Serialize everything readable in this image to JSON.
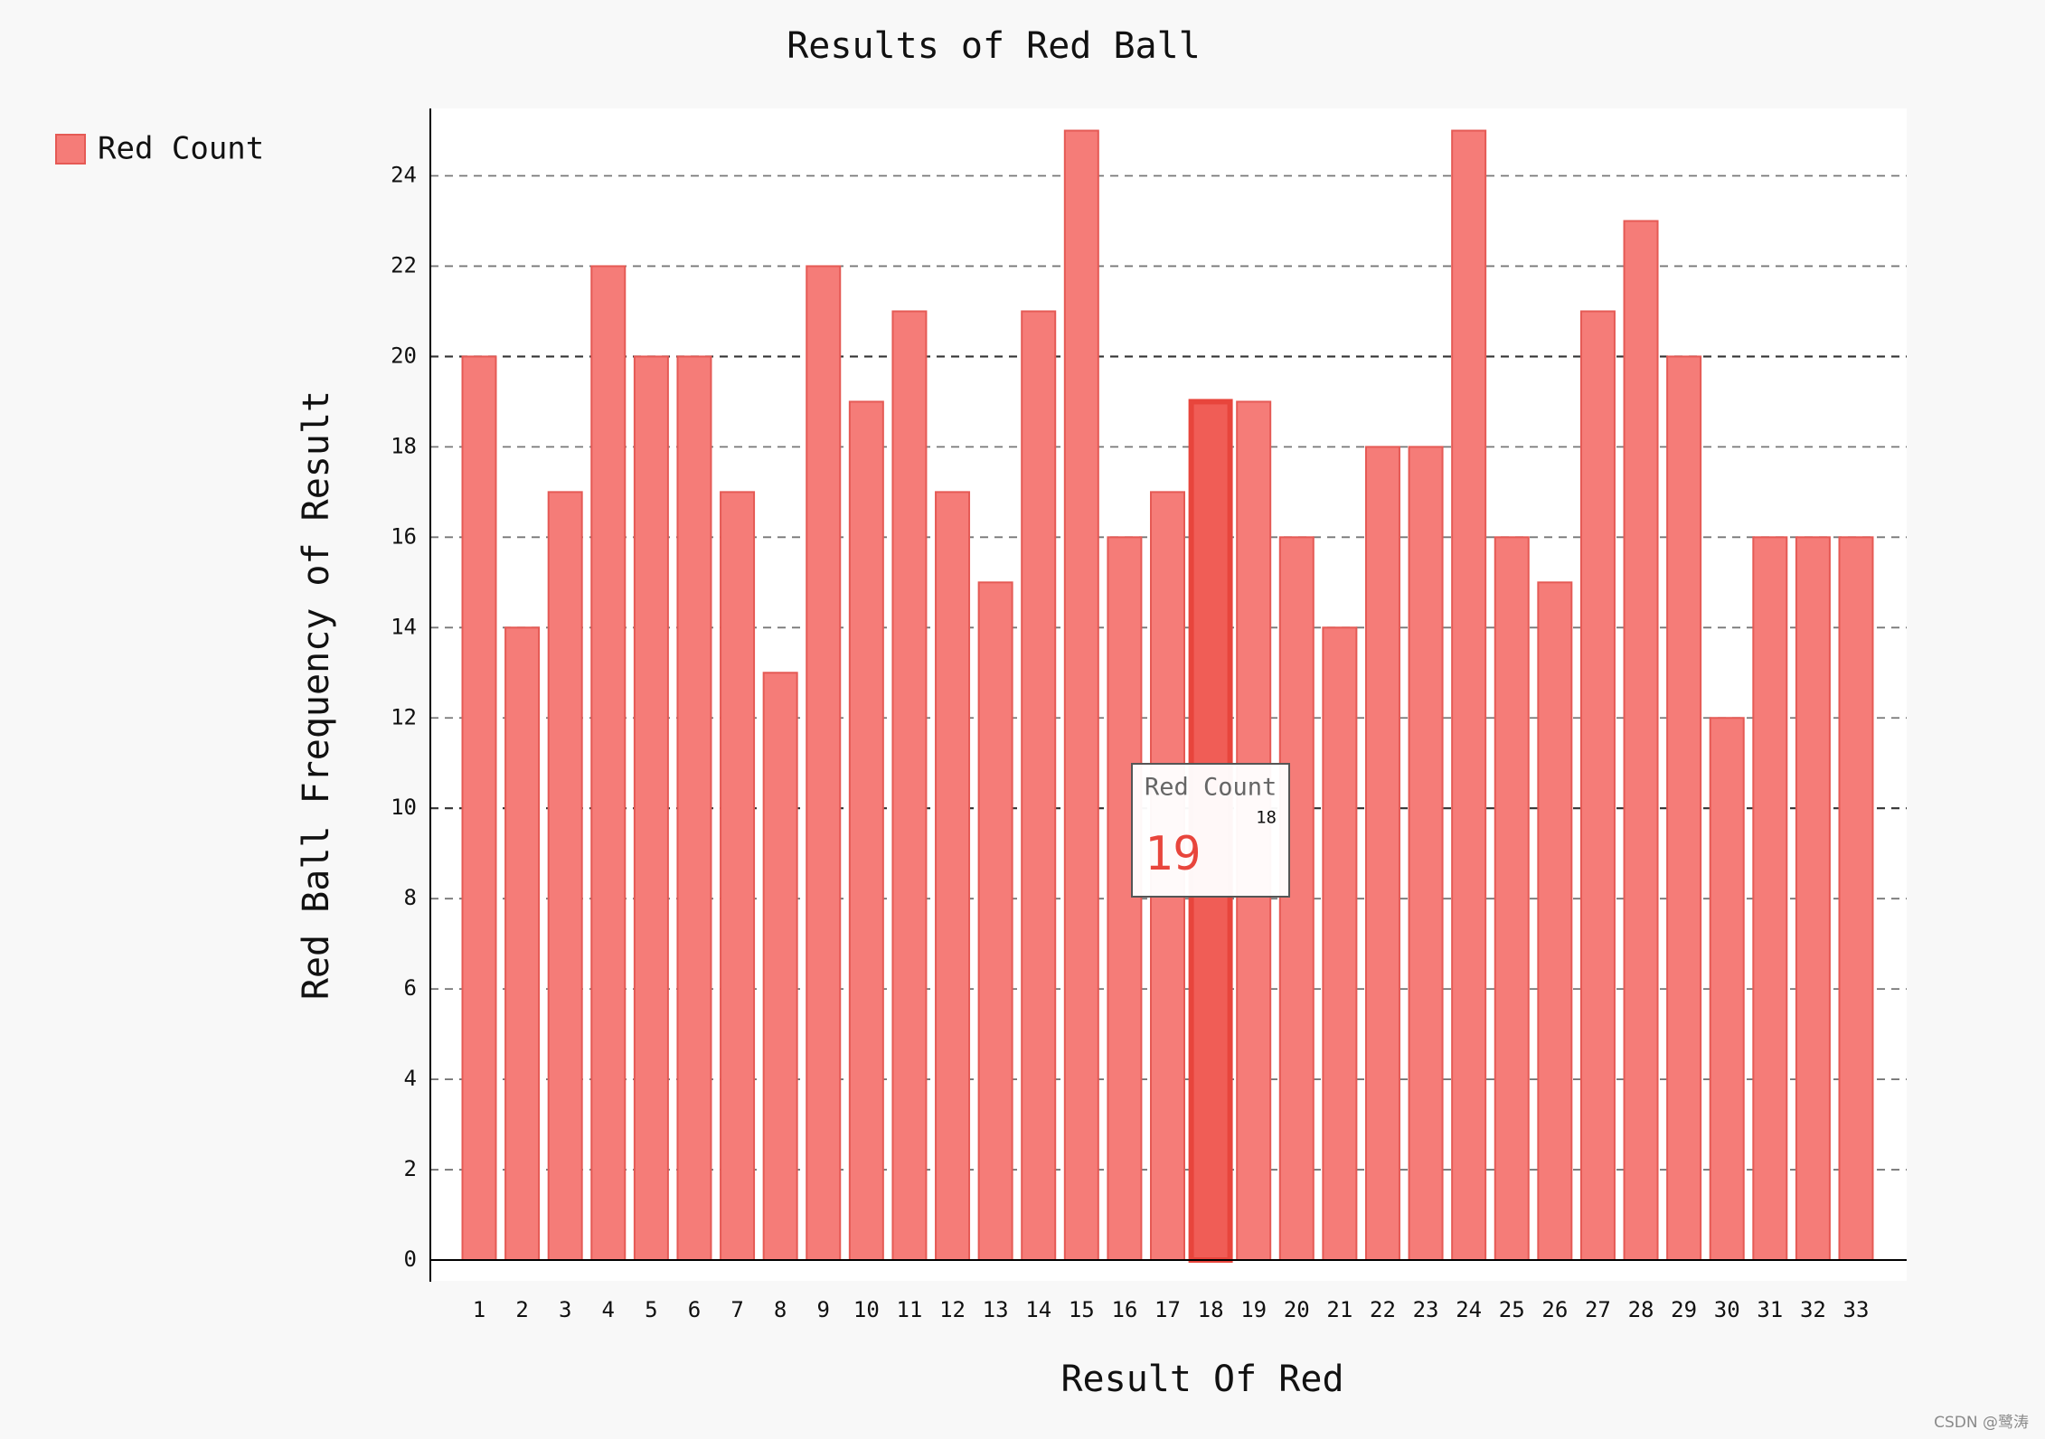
{
  "chart_data": {
    "type": "bar",
    "title": "Results of Red Ball",
    "xlabel": "Result Of Red",
    "ylabel": "Red Ball Frequency of Result",
    "ylim": [
      0,
      25
    ],
    "yticks": [
      0,
      2,
      4,
      6,
      8,
      10,
      12,
      14,
      16,
      18,
      20,
      22,
      24
    ],
    "categories": [
      "1",
      "2",
      "3",
      "4",
      "5",
      "6",
      "7",
      "8",
      "9",
      "10",
      "11",
      "12",
      "13",
      "14",
      "15",
      "16",
      "17",
      "18",
      "19",
      "20",
      "21",
      "22",
      "23",
      "24",
      "25",
      "26",
      "27",
      "28",
      "29",
      "30",
      "31",
      "32",
      "33"
    ],
    "series": [
      {
        "name": "Red Count",
        "color": "#f57c78",
        "values": [
          20,
          14,
          17,
          22,
          20,
          20,
          17,
          13,
          22,
          19,
          21,
          17,
          15,
          21,
          25,
          16,
          17,
          19,
          19,
          16,
          14,
          18,
          18,
          25,
          16,
          15,
          21,
          23,
          20,
          12,
          16,
          16,
          16
        ]
      }
    ],
    "legend": {
      "position": "top-left",
      "label": "Red Count"
    },
    "grid": true,
    "tooltip": {
      "series": "Red Count",
      "category": "18",
      "value": "19"
    }
  },
  "colors": {
    "bar": "#f57c78",
    "bar_stroke": "#e55a55",
    "highlight": "#f05d56",
    "tooltip_value": "#e8453c",
    "plot_bg": "#ffffff",
    "page_bg": "#f8f8f8"
  },
  "watermark": "CSDN @鹭涛"
}
